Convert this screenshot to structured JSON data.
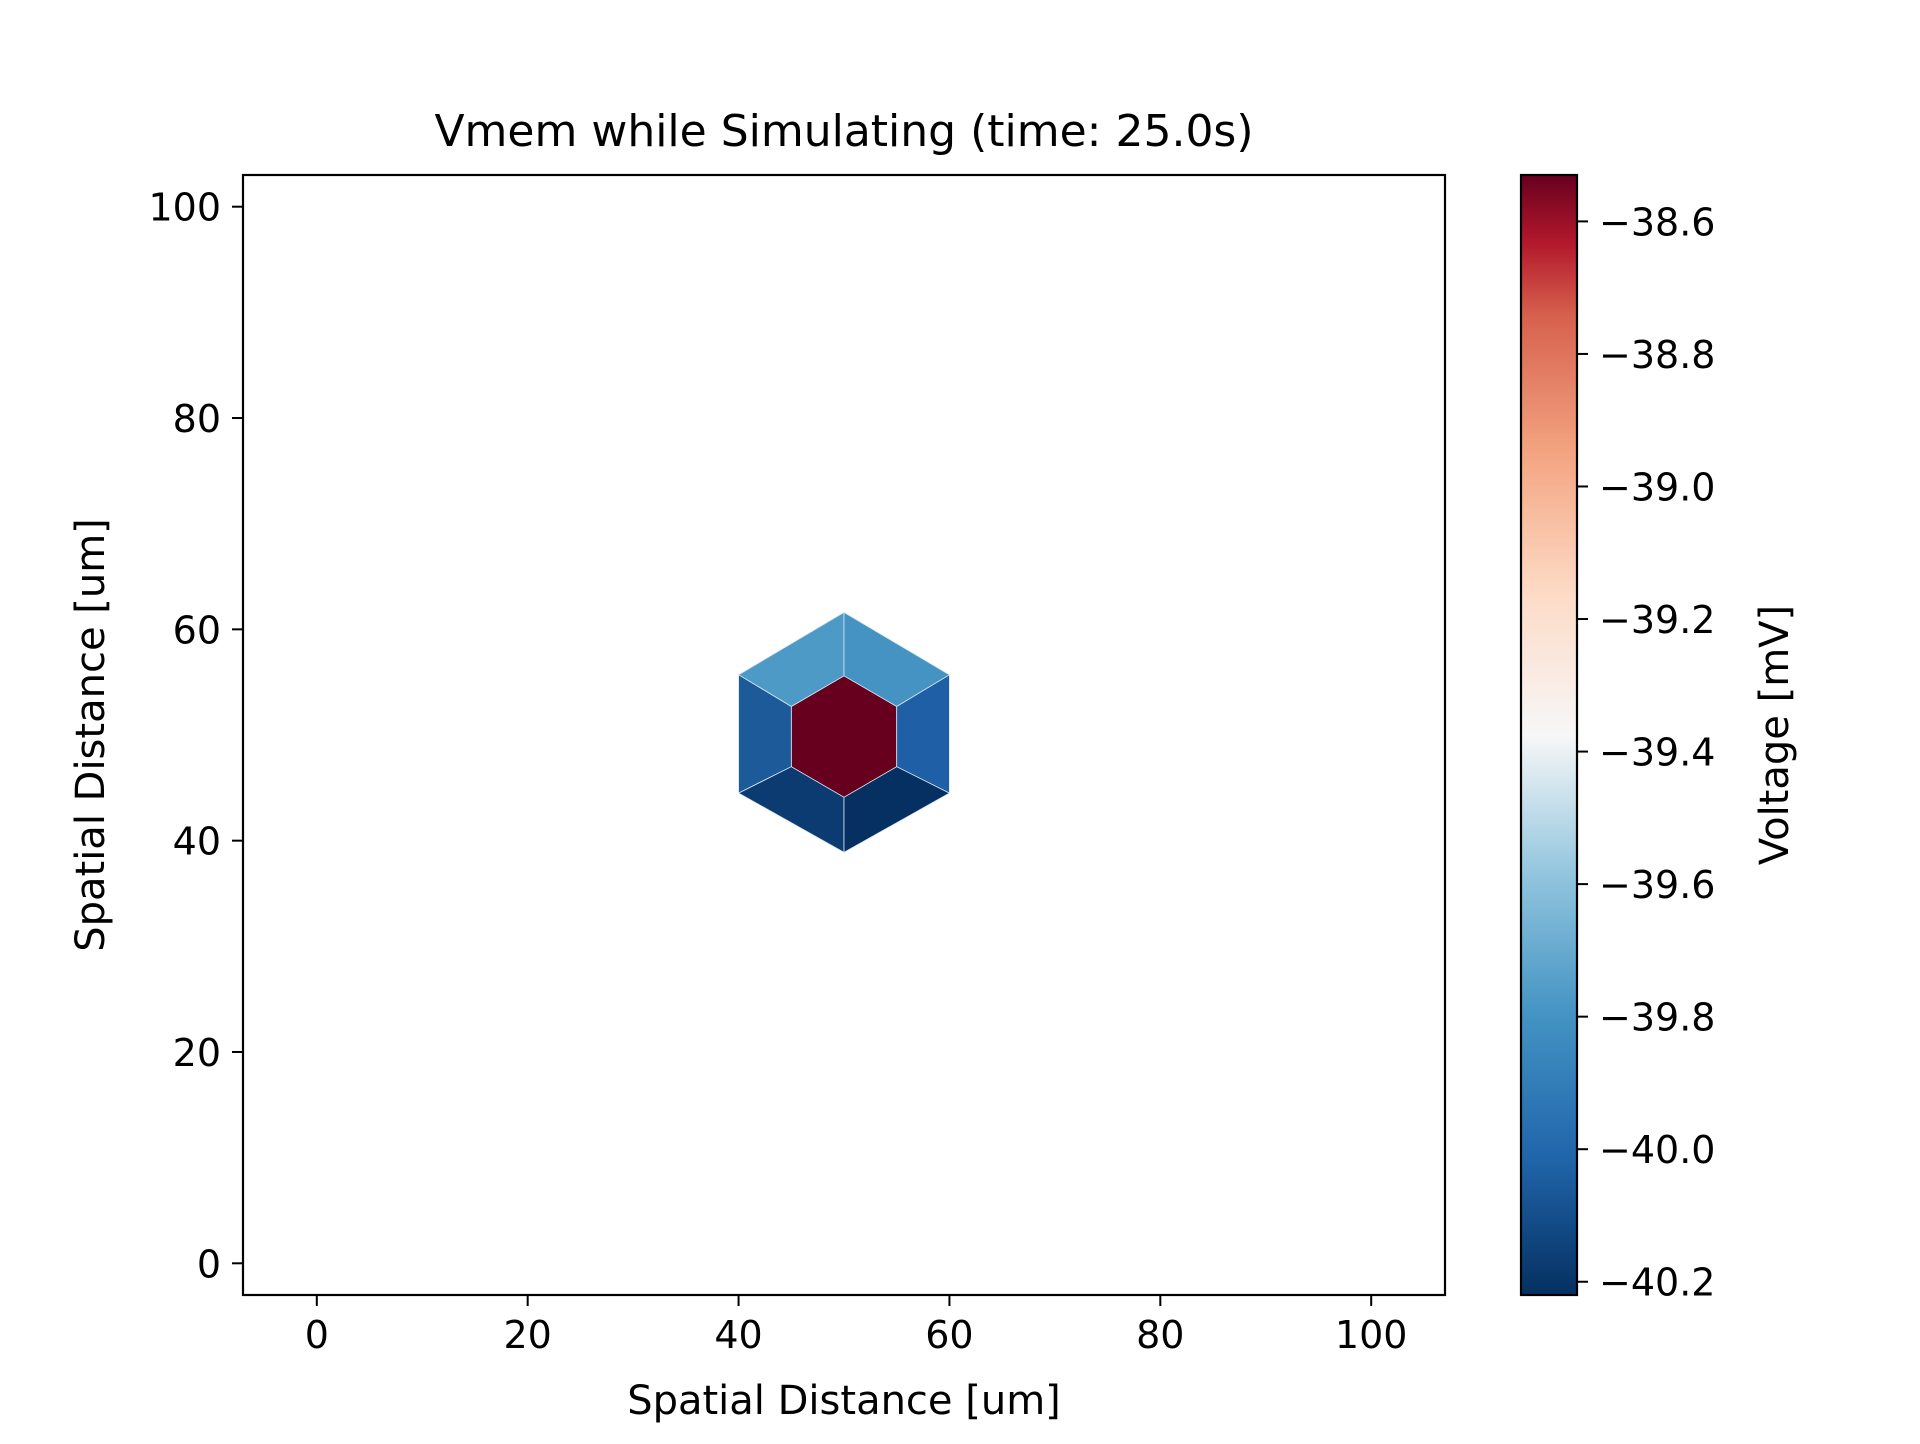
{
  "chart_data": {
    "type": "heatmap",
    "title": "Vmem while Simulating (time: 25.0s)",
    "xlabel": "Spatial Distance [um]",
    "ylabel": "Spatial Distance [um]",
    "xlim": [
      -7,
      107
    ],
    "ylim": [
      -3,
      103
    ],
    "xticks": [
      0,
      20,
      40,
      60,
      80,
      100
    ],
    "yticks": [
      0,
      20,
      40,
      60,
      80,
      100
    ],
    "grid": false,
    "colorbar": {
      "label": "Voltage [mV]",
      "colormap": "RdBu_r",
      "range": [
        -40.22,
        -38.53
      ],
      "ticks": [
        -38.6,
        -38.8,
        -39.0,
        -39.2,
        -39.4,
        -39.6,
        -39.8,
        -40.0,
        -40.2
      ],
      "tick_labels": [
        "−38.6",
        "−38.8",
        "−39.0",
        "−39.2",
        "−39.4",
        "−39.6",
        "−39.8",
        "−40.0",
        "−40.2"
      ]
    },
    "cells": [
      {
        "id": "center",
        "value": -38.53,
        "color": "#67001f",
        "vertices": [
          [
            50,
            55.6
          ],
          [
            55,
            52.7
          ],
          [
            55,
            47.0
          ],
          [
            50,
            44.1
          ],
          [
            45,
            47.0
          ],
          [
            45,
            52.7
          ]
        ]
      },
      {
        "id": "top-left",
        "value": -39.82,
        "color": "#4e9ac7",
        "vertices": [
          [
            50,
            61.6
          ],
          [
            50,
            55.6
          ],
          [
            45,
            52.7
          ],
          [
            40,
            55.7
          ]
        ]
      },
      {
        "id": "top-right",
        "value": -39.88,
        "color": "#4593c3",
        "vertices": [
          [
            50,
            61.6
          ],
          [
            60,
            55.7
          ],
          [
            55,
            52.7
          ],
          [
            50,
            55.6
          ]
        ]
      },
      {
        "id": "left",
        "value": -40.07,
        "color": "#1d5a9a",
        "vertices": [
          [
            40,
            55.7
          ],
          [
            45,
            52.7
          ],
          [
            45,
            47.0
          ],
          [
            40,
            44.5
          ]
        ]
      },
      {
        "id": "right",
        "value": -40.05,
        "color": "#1f5fa5",
        "vertices": [
          [
            60,
            55.7
          ],
          [
            60,
            44.5
          ],
          [
            55,
            47.0
          ],
          [
            55,
            52.7
          ]
        ]
      },
      {
        "id": "bottom-left",
        "value": -40.18,
        "color": "#0b3b70",
        "vertices": [
          [
            40,
            44.5
          ],
          [
            45,
            47.0
          ],
          [
            50,
            44.1
          ],
          [
            50,
            38.9
          ]
        ]
      },
      {
        "id": "bottom-right",
        "value": -40.22,
        "color": "#053061",
        "vertices": [
          [
            60,
            44.5
          ],
          [
            50,
            38.9
          ],
          [
            50,
            44.1
          ],
          [
            55,
            47.0
          ]
        ]
      }
    ]
  }
}
